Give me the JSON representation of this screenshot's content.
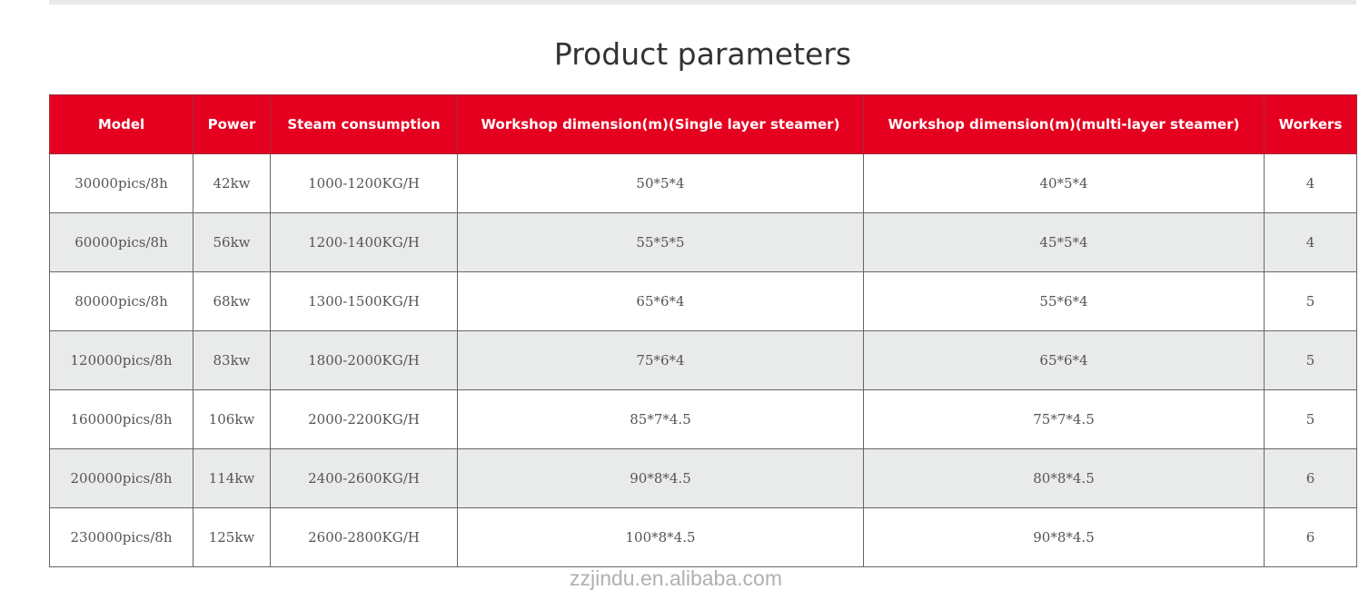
{
  "title": "Product parameters",
  "watermark": "zzjindu.en.alibaba.com",
  "colors": {
    "header_bg": "#e60020",
    "alt_row": "#e9ebea"
  },
  "table": {
    "headers": [
      "Model",
      "Power",
      "Steam consumption",
      "Workshop dimension(m)(Single layer steamer)",
      "Workshop dimension(m)(multi-layer steamer)",
      "Workers"
    ],
    "rows": [
      [
        "30000pics/8h",
        "42kw",
        "1000-1200KG/H",
        "50*5*4",
        "40*5*4",
        "4"
      ],
      [
        "60000pics/8h",
        "56kw",
        "1200-1400KG/H",
        "55*5*5",
        "45*5*4",
        "4"
      ],
      [
        "80000pics/8h",
        "68kw",
        "1300-1500KG/H",
        "65*6*4",
        "55*6*4",
        "5"
      ],
      [
        "120000pics/8h",
        "83kw",
        "1800-2000KG/H",
        "75*6*4",
        "65*6*4",
        "5"
      ],
      [
        "160000pics/8h",
        "106kw",
        "2000-2200KG/H",
        "85*7*4.5",
        "75*7*4.5",
        "5"
      ],
      [
        "200000pics/8h",
        "114kw",
        "2400-2600KG/H",
        "90*8*4.5",
        "80*8*4.5",
        "6"
      ],
      [
        "230000pics/8h",
        "125kw",
        "2600-2800KG/H",
        "100*8*4.5",
        "90*8*4.5",
        "6"
      ]
    ]
  }
}
